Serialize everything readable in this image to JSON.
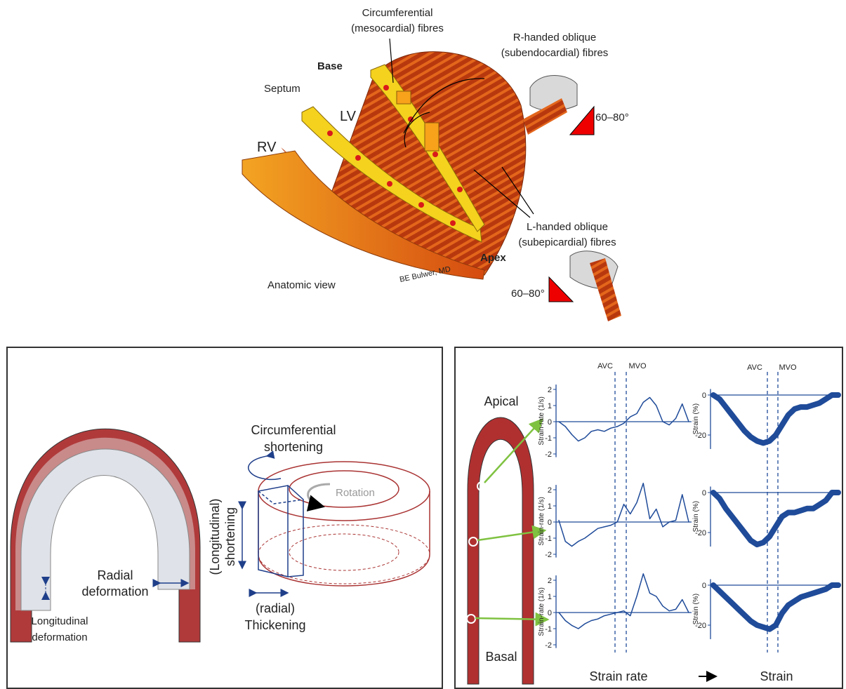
{
  "anatomy": {
    "circumferential": [
      "Circumferential",
      "(mesocardial) fibres"
    ],
    "r_handed": [
      "R-handed oblique",
      "(subendocardial) fibres"
    ],
    "l_handed": [
      "L-handed oblique",
      "(subepicardial) fibres"
    ],
    "base": "Base",
    "septum": "Septum",
    "lv": "LV",
    "rv": "RV",
    "apex": "Apex",
    "angle": "60–80°",
    "view": "Anatomic view",
    "credit": "BE Bulwer, MD"
  },
  "deformation": {
    "circumferential": [
      "Circumferential",
      "shortening"
    ],
    "rotation": "Rotation",
    "longitudinal_shortening": [
      "(Longitudinal)",
      "shortening"
    ],
    "radial": [
      "Radial",
      "deformation"
    ],
    "longitudinal": [
      "Longitudinal",
      "deformation"
    ],
    "thickening": [
      "(radial)",
      "Thickening"
    ]
  },
  "strain": {
    "apical": "Apical",
    "basal": "Basal",
    "avc": "AVC",
    "mvo": "MVO",
    "rate_axis": "Strain-rate (1/s)",
    "strain_axis": "Strain (%)",
    "rate_label": "Strain rate",
    "strain_label": "Strain",
    "rate_ylim": [
      -2.2,
      2.3
    ],
    "rate_yticks": [
      2,
      1,
      0,
      -1,
      -2
    ],
    "strain_ylim": [
      -27,
      3
    ],
    "strain_yticks": [
      0,
      -20
    ],
    "panels": [
      {
        "rate": [
          0,
          -0.3,
          -0.8,
          -1.2,
          -1.0,
          -0.6,
          -0.5,
          -0.6,
          -0.4,
          -0.3,
          -0.1,
          0.3,
          0.5,
          1.2,
          1.5,
          1.0,
          0,
          -0.2,
          0.2,
          1.1,
          0
        ],
        "strain": [
          0,
          -2,
          -6,
          -10,
          -14,
          -18,
          -21,
          -23,
          -24,
          -23,
          -20,
          -15,
          -10,
          -7,
          -6,
          -6,
          -5,
          -4,
          -2,
          0,
          0
        ]
      },
      {
        "rate": [
          0.1,
          -1.2,
          -1.5,
          -1.2,
          -1.0,
          -0.7,
          -0.4,
          -0.3,
          -0.2,
          0,
          1.1,
          0.5,
          1.2,
          2.4,
          0.2,
          0.8,
          -0.3,
          0,
          0.1,
          1.7,
          0
        ],
        "strain": [
          0,
          -3,
          -8,
          -12,
          -16,
          -20,
          -24,
          -26,
          -25,
          -22,
          -17,
          -12,
          -10,
          -10,
          -9,
          -8,
          -8,
          -6,
          -4,
          0,
          0
        ]
      },
      {
        "rate": [
          0,
          -0.5,
          -0.8,
          -1.0,
          -0.7,
          -0.5,
          -0.4,
          -0.2,
          -0.1,
          0,
          0.1,
          -0.2,
          1.0,
          2.4,
          1.2,
          1.0,
          0.4,
          0.1,
          0.2,
          0.8,
          0
        ],
        "strain": [
          0,
          -3,
          -6,
          -9,
          -12,
          -15,
          -18,
          -20,
          -21,
          -22,
          -20,
          -14,
          -10,
          -8,
          -6,
          -5,
          -4,
          -3,
          -2,
          0,
          0
        ]
      }
    ]
  }
}
